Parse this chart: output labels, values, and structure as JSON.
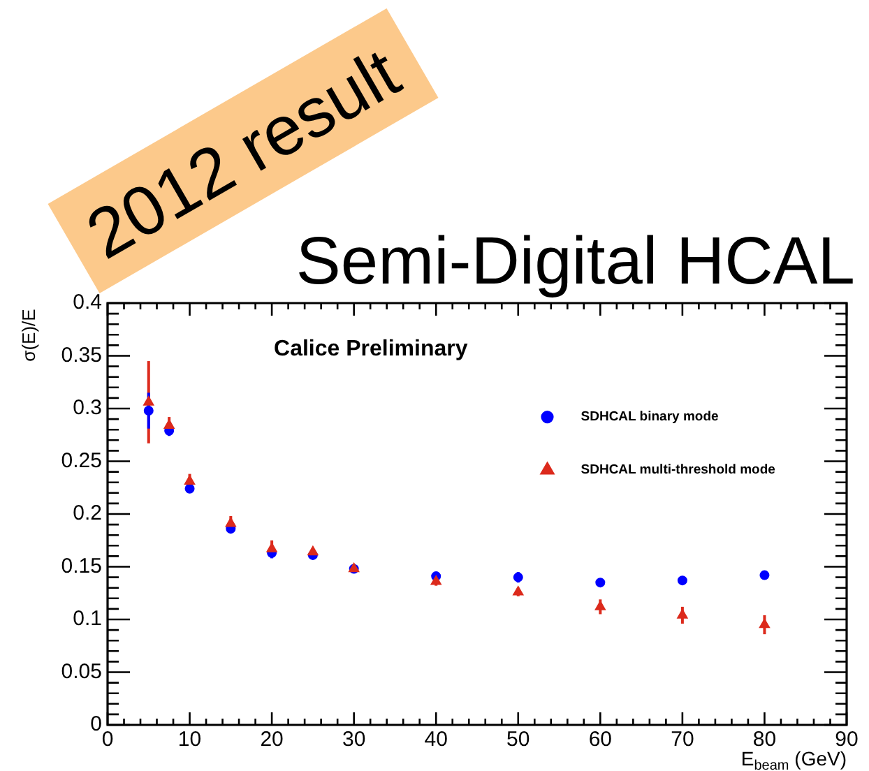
{
  "chart_data": {
    "type": "scatter",
    "title": "Semi-Digital HCAL",
    "xlabel": "E$_{beam}$ (GeV)",
    "ylabel": "σ(E)/E",
    "annotations": [
      "Calice Preliminary",
      "2012 result"
    ],
    "x": [
      5,
      7.5,
      10,
      15,
      20,
      25,
      30,
      40,
      50,
      60,
      70,
      80
    ],
    "series": [
      {
        "name": "SDHCAL binary mode",
        "color": "#0000ff",
        "marker": "circle",
        "values": [
          0.298,
          0.279,
          0.224,
          0.186,
          0.163,
          0.161,
          0.148,
          0.141,
          0.14,
          0.135,
          0.137,
          0.142
        ],
        "errors": [
          0.017,
          0.005,
          0.004,
          0.003,
          0.005,
          0.003,
          0.003,
          0.003,
          0.005,
          0.003,
          0.003,
          0.003
        ]
      },
      {
        "name": "SDHCAL multi-threshold mode",
        "color": "#dc2a1c",
        "marker": "triangle",
        "values": [
          0.306,
          0.284,
          0.231,
          0.191,
          0.167,
          0.164,
          0.148,
          0.136,
          0.126,
          0.112,
          0.104,
          0.095
        ],
        "errors": [
          0.039,
          0.008,
          0.007,
          0.007,
          0.008,
          0.004,
          0.003,
          0.004,
          0.004,
          0.007,
          0.008,
          0.009
        ]
      }
    ],
    "xlim": [
      0,
      90
    ],
    "ylim": [
      0,
      0.4
    ],
    "xticks": [
      0,
      {
        "value": 2,
        "label": null
      },
      {
        "value": 4,
        "label": null
      },
      {
        "value": 6,
        "label": null
      },
      {
        "value": 8,
        "label": null
      },
      10,
      {
        "value": 12,
        "label": null
      },
      {
        "value": 14,
        "label": null
      },
      {
        "value": 16,
        "label": null
      },
      {
        "value": 18,
        "label": null
      },
      20,
      {
        "value": 22,
        "label": null
      },
      {
        "value": 24,
        "label": null
      },
      {
        "value": 26,
        "label": null
      },
      {
        "value": 28,
        "label": null
      },
      30,
      {
        "value": 32,
        "label": null
      },
      {
        "value": 34,
        "label": null
      },
      {
        "value": 36,
        "label": null
      },
      {
        "value": 38,
        "label": null
      },
      40,
      {
        "value": 42,
        "label": null
      },
      {
        "value": 44,
        "label": null
      },
      {
        "value": 46,
        "label": null
      },
      {
        "value": 48,
        "label": null
      },
      50,
      {
        "value": 52,
        "label": null
      },
      {
        "value": 54,
        "label": null
      },
      {
        "value": 56,
        "label": null
      },
      {
        "value": 58,
        "label": null
      },
      60,
      {
        "value": 62,
        "label": null
      },
      {
        "value": 64,
        "label": null
      },
      {
        "value": 66,
        "label": null
      },
      {
        "value": 68,
        "label": null
      },
      70,
      {
        "value": 72,
        "label": null
      },
      {
        "value": 74,
        "label": null
      },
      {
        "value": 76,
        "label": null
      },
      {
        "value": 78,
        "label": null
      },
      80,
      {
        "value": 82,
        "label": null
      },
      {
        "value": 84,
        "label": null
      },
      {
        "value": 86,
        "label": null
      },
      {
        "value": 88,
        "label": null
      },
      90
    ],
    "yticks": [
      0,
      {
        "value": 0.01,
        "label": null
      },
      {
        "value": 0.02,
        "label": null
      },
      {
        "value": 0.03,
        "label": null
      },
      {
        "value": 0.04,
        "label": null
      },
      0.05,
      {
        "value": 0.06,
        "label": null
      },
      {
        "value": 0.07,
        "label": null
      },
      {
        "value": 0.08,
        "label": null
      },
      {
        "value": 0.09,
        "label": null
      },
      0.1,
      {
        "value": 0.11,
        "label": null
      },
      {
        "value": 0.12,
        "label": null
      },
      {
        "value": 0.13,
        "label": null
      },
      {
        "value": 0.14,
        "label": null
      },
      0.15,
      {
        "value": 0.16,
        "label": null
      },
      {
        "value": 0.17,
        "label": null
      },
      {
        "value": 0.18,
        "label": null
      },
      {
        "value": 0.19,
        "label": null
      },
      0.2,
      {
        "value": 0.21,
        "label": null
      },
      {
        "value": 0.22,
        "label": null
      },
      {
        "value": 0.23,
        "label": null
      },
      {
        "value": 0.24,
        "label": null
      },
      0.25,
      {
        "value": 0.26,
        "label": null
      },
      {
        "value": 0.27,
        "label": null
      },
      {
        "value": 0.28,
        "label": null
      },
      {
        "value": 0.29,
        "label": null
      },
      0.3,
      {
        "value": 0.31,
        "label": null
      },
      {
        "value": 0.32,
        "label": null
      },
      {
        "value": 0.33,
        "label": null
      },
      {
        "value": 0.34,
        "label": null
      },
      0.35,
      {
        "value": 0.36,
        "label": null
      },
      {
        "value": 0.37,
        "label": null
      },
      {
        "value": 0.38,
        "label": null
      },
      {
        "value": 0.39,
        "label": null
      },
      0.4
    ],
    "legend": "top right"
  }
}
